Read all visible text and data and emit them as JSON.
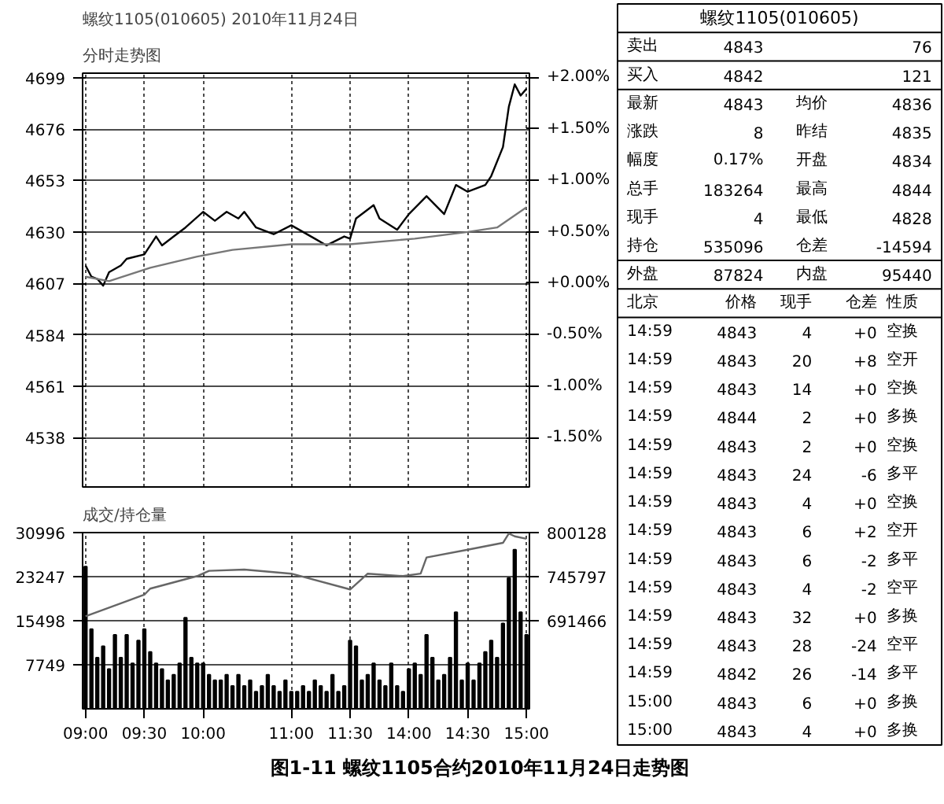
{
  "chart_data": [
    {
      "type": "line",
      "title": "螺纹1105(010605)  2010年11月24日",
      "subtitle": "分时走势图",
      "annotations": [
        "图1-11  螺纹1105合约2010年11月24日走势图"
      ],
      "categories": [
        null,
        null,
        null,
        null,
        null,
        null,
        null,
        null,
        null,
        null,
        null,
        null,
        null,
        null,
        null,
        null,
        null,
        null,
        null,
        null,
        null,
        null,
        null,
        null,
        null,
        null,
        null,
        null,
        null,
        null,
        null,
        null,
        null,
        null,
        null,
        null,
        null,
        null,
        null,
        null,
        null,
        null,
        null,
        null,
        null,
        null,
        null,
        null,
        null,
        null,
        null,
        null,
        null,
        null,
        null,
        null,
        null,
        null,
        null,
        null,
        null,
        null,
        null,
        null,
        null,
        null,
        null,
        null,
        null,
        null,
        null,
        null,
        null,
        null,
        null,
        null
      ],
      "ylim": [
        4516,
        4701
      ],
      "yticks": [
        4538,
        4561,
        4584,
        4607,
        4630,
        4653,
        4676,
        4699
      ],
      "y2lim": [
        -1.98,
        2.04
      ],
      "y2ticks": [
        {
          "value": -1.5,
          "label": "-1.50%"
        },
        {
          "value": -1.0,
          "label": "-1.00%"
        },
        {
          "value": -0.5,
          "label": "-0.50%"
        },
        {
          "value": 0.0,
          "label": "+0.00%"
        },
        {
          "value": 0.5,
          "label": "+0.50%"
        },
        {
          "value": 1.0,
          "label": "+1.00%"
        },
        {
          "value": 1.5,
          "label": "+1.50%"
        },
        {
          "value": 2.0,
          "label": "+2.00%"
        }
      ],
      "grid": true,
      "tick_labels": "y",
      "series": [
        {
          "color": "#000000",
          "values": [
            4615,
            4610,
            4609,
            4606,
            4612,
            null,
            4615,
            4618,
            null,
            null,
            4620,
            null,
            4628,
            4624,
            null,
            4628,
            null,
            4632,
            null,
            null,
            4639,
            null,
            4635,
            null,
            4639,
            null,
            4636,
            4639,
            null,
            4632,
            null,
            null,
            4629,
            null,
            null,
            4633,
            null,
            null,
            null,
            4627,
            null,
            4624,
            null,
            null,
            4628,
            4627,
            4636,
            null,
            null,
            4642,
            4636,
            null,
            null,
            4631,
            null,
            4638,
            null,
            null,
            4646,
            null,
            null,
            4638,
            null,
            4651,
            null,
            4648,
            null,
            null,
            4651,
            4655,
            null,
            4668,
            4686,
            4696,
            4691,
            4694
          ]
        },
        {
          "color": "#777777",
          "values": [
            4610,
            null,
            null,
            null,
            4608,
            null,
            null,
            null,
            null,
            null,
            null,
            4614,
            null,
            null,
            null,
            null,
            null,
            null,
            null,
            4619,
            null,
            null,
            null,
            null,
            null,
            4622,
            null,
            null,
            null,
            null,
            null,
            null,
            null,
            null,
            null,
            4624.5,
            null,
            null,
            null,
            null,
            null,
            null,
            null,
            null,
            null,
            4624.5,
            null,
            null,
            null,
            null,
            null,
            null,
            null,
            null,
            null,
            null,
            4627,
            null,
            null,
            null,
            null,
            null,
            null,
            null,
            null,
            4630,
            null,
            null,
            null,
            null,
            4632,
            null,
            null,
            null,
            null,
            4641
          ]
        }
      ]
    },
    {
      "type": "bar",
      "title": "成交/持仓量",
      "categories": [
        "09:00",
        null,
        null,
        null,
        null,
        null,
        null,
        null,
        null,
        null,
        "09:30",
        null,
        null,
        null,
        null,
        null,
        null,
        null,
        null,
        null,
        "10:00",
        null,
        null,
        null,
        null,
        null,
        null,
        null,
        null,
        null,
        null,
        null,
        null,
        null,
        null,
        "11:00",
        null,
        null,
        null,
        null,
        null,
        null,
        null,
        null,
        null,
        "11:30",
        null,
        null,
        null,
        null,
        null,
        null,
        null,
        null,
        null,
        "14:00",
        null,
        null,
        null,
        null,
        null,
        null,
        null,
        null,
        null,
        "14:30",
        null,
        null,
        null,
        null,
        null,
        null,
        null,
        null,
        null,
        "15:00"
      ],
      "ylim": [
        0,
        30996
      ],
      "yticks": [
        7749,
        15498,
        23247,
        30996
      ],
      "y2lim": [
        582804,
        800128
      ],
      "y2ticks": [
        691466,
        745797,
        800128
      ],
      "grid": true,
      "series": [
        {
          "type": "bar",
          "color": "#000000",
          "values": [
            25000,
            14000,
            9000,
            11000,
            7000,
            13000,
            9000,
            13000,
            8000,
            12000,
            14000,
            10000,
            8000,
            7000,
            5000,
            6000,
            8000,
            16000,
            9000,
            8000,
            8000,
            6000,
            5000,
            5000,
            6000,
            4000,
            6000,
            4000,
            5000,
            3000,
            4000,
            6000,
            4000,
            3000,
            5000,
            3000,
            3000,
            4000,
            3000,
            5000,
            4000,
            3000,
            6000,
            3000,
            4000,
            12000,
            11000,
            5000,
            6000,
            8000,
            5000,
            4000,
            8000,
            4000,
            3000,
            7000,
            8000,
            6000,
            13000,
            9000,
            5000,
            6000,
            9000,
            17000,
            5000,
            8000,
            5000,
            8000,
            10000,
            12000,
            9000,
            15000,
            23000,
            28000,
            17000,
            13000
          ]
        },
        {
          "type": "line",
          "axis": "y2",
          "color": "#666666",
          "values": [
            697000,
            null,
            null,
            null,
            null,
            null,
            null,
            null,
            null,
            null,
            723500,
            731000,
            null,
            null,
            null,
            null,
            null,
            null,
            null,
            746500,
            null,
            753000,
            null,
            null,
            null,
            null,
            null,
            754500,
            null,
            null,
            null,
            null,
            null,
            null,
            null,
            749500,
            null,
            null,
            null,
            null,
            null,
            null,
            null,
            null,
            null,
            730000,
            null,
            null,
            749500,
            null,
            null,
            null,
            null,
            null,
            746500,
            null,
            null,
            749500,
            769500,
            null,
            null,
            null,
            null,
            null,
            null,
            779000,
            null,
            null,
            null,
            null,
            null,
            787500,
            799000,
            795500,
            null,
            792500
          ]
        }
      ]
    },
    {
      "type": "other",
      "title": "螺纹1105(010605)",
      "annotations": [
        "卖出",
        "4843",
        "76",
        "买入",
        "4842",
        "121",
        "最新",
        "4843",
        "均价",
        "4836",
        "涨跌",
        "8",
        "昨结",
        "4835",
        "幅度",
        "0.17%",
        "开盘",
        "4834",
        "总手",
        "183264",
        "最高",
        "4844",
        "现手",
        "4",
        "最低",
        "4828",
        "持仓",
        "535096",
        "仓差",
        "-14594",
        "外盘",
        "87824",
        "内盘",
        "95440",
        "北京",
        "价格",
        "现手",
        "仓差",
        "性质",
        "14:59",
        "4843",
        "4",
        "+0",
        "空换",
        "14:59",
        "4843",
        "20",
        "+8",
        "空开",
        "14:59",
        "4843",
        "14",
        "+0",
        "空换",
        "14:59",
        "4844",
        "2",
        "+0",
        "多换",
        "14:59",
        "4843",
        "2",
        "+0",
        "空换",
        "14:59",
        "4843",
        "24",
        "-6",
        "多平",
        "14:59",
        "4843",
        "4",
        "+0",
        "空换",
        "14:59",
        "4843",
        "6",
        "+2",
        "空开",
        "14:59",
        "4843",
        "6",
        "-2",
        "多平",
        "14:59",
        "4843",
        "4",
        "-2",
        "空平",
        "14:59",
        "4843",
        "32",
        "+0",
        "多换",
        "14:59",
        "4843",
        "28",
        "-24",
        "空平",
        "14:59",
        "4842",
        "26",
        "-14",
        "多平",
        "15:00",
        "4843",
        "6",
        "+0",
        "多换",
        "15:00",
        "4843",
        "4",
        "+0",
        "多换"
      ]
    }
  ]
}
